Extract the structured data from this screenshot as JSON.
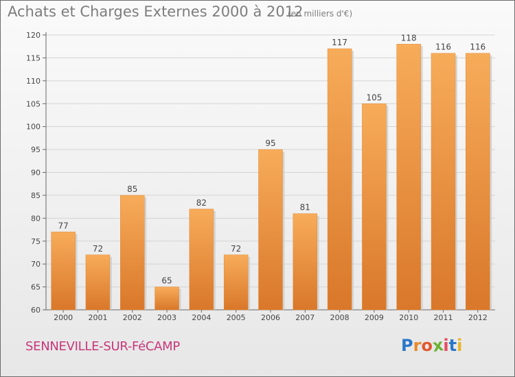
{
  "title": "Achats et Charges Externes 2000 à 2012",
  "subtitle": "(en milliers d'€)",
  "city": "SENNEVILLE-SUR-FéCAMP",
  "logo": {
    "letters": [
      "P",
      "r",
      "o",
      "x",
      "i",
      "t",
      "i"
    ],
    "colors": [
      "#2a77c9",
      "#e8892a",
      "#e1582e",
      "#6eb236",
      "#e84a5f",
      "#2a77c9",
      "#e8b42a"
    ]
  },
  "colors": {
    "bar": "#f09a3e",
    "bar_light": "#f7ac5a",
    "bar_dark": "#d9772a",
    "title": "#7d7d7d",
    "city": "#c8377a"
  },
  "chart_data": {
    "type": "bar",
    "categories": [
      "2000",
      "2001",
      "2002",
      "2003",
      "2004",
      "2005",
      "2006",
      "2007",
      "2008",
      "2009",
      "2010",
      "2011",
      "2012"
    ],
    "values": [
      77,
      72,
      85,
      65,
      82,
      72,
      95,
      81,
      117,
      105,
      118,
      116,
      116
    ],
    "title": "Achats et Charges Externes 2000 à 2012",
    "subtitle": "(en milliers d'€)",
    "ylim": [
      60,
      120
    ],
    "yticks": [
      60,
      65,
      70,
      75,
      80,
      85,
      90,
      95,
      100,
      105,
      110,
      115,
      120
    ],
    "grid": true,
    "legend": "none"
  }
}
